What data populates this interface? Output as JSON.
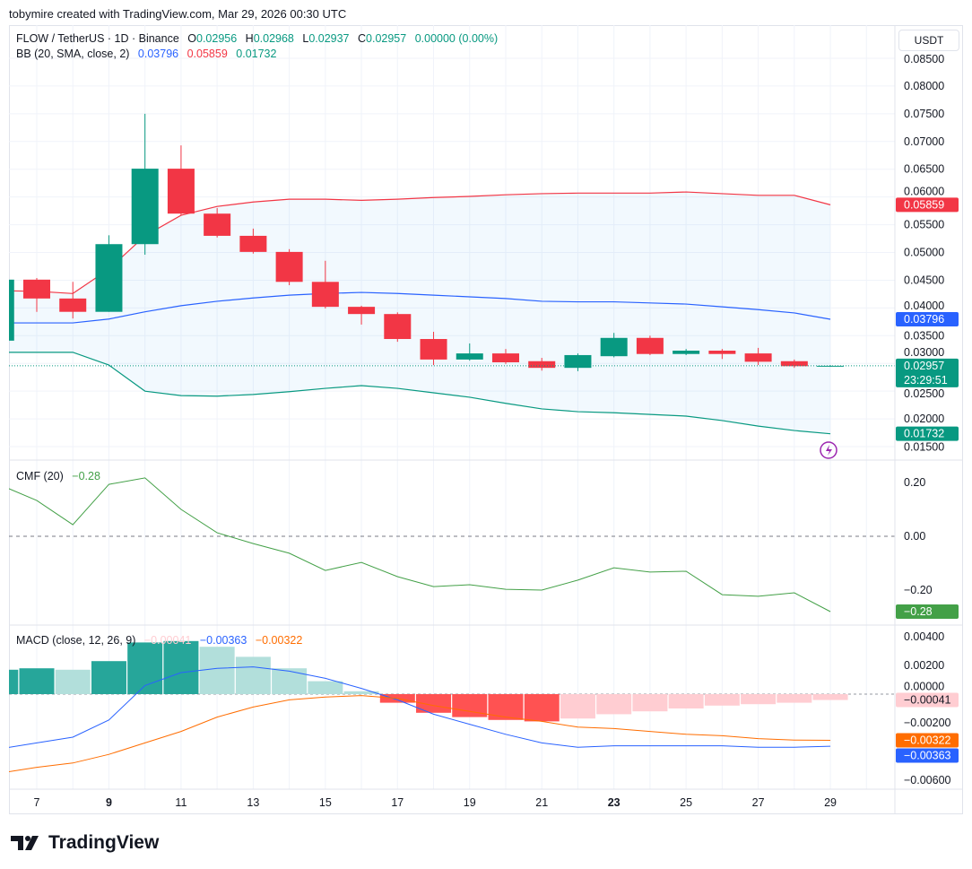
{
  "header": {
    "credit": "tobymire created with TradingView.com, Mar 29, 2026 00:30 UTC"
  },
  "legend": {
    "symbol": "FLOW / TetherUS · 1D · Binance",
    "o_label": "O",
    "o": "0.02956",
    "h_label": "H",
    "h": "0.02968",
    "l_label": "L",
    "l": "0.02937",
    "c_label": "C",
    "c": "0.02957",
    "change": "0.00000 (0.00%)",
    "bb_label": "BB (20, SMA, close, 2)",
    "bb_mid": "0.03796",
    "bb_up": "0.05859",
    "bb_low": "0.01732",
    "cmf_label": "CMF (20)",
    "cmf_val": "−0.28",
    "macd_label": "MACD (close, 12, 26, 9)",
    "macd_hist": "−0.00041",
    "macd_line": "−0.00363",
    "macd_signal": "−0.00322"
  },
  "currency_button": "USDT",
  "logo_text": "TradingView",
  "colors": {
    "up": "#089981",
    "down": "#f23645",
    "bb_mid": "#2962ff",
    "bb_up": "#f23645",
    "bb_low": "#089981",
    "cmf": "#43a047",
    "macd": "#2962ff",
    "signal": "#ff6d00",
    "hist_up_grow": "#26a69a",
    "hist_up_fall": "#b2dfdb",
    "hist_dn_grow": "#ff5252",
    "hist_dn_fall": "#ffcdd2"
  },
  "chart_data": [
    {
      "type": "candlestick",
      "title": "FLOW / TetherUS · 1D · Binance",
      "x_unit": "day of March 2026",
      "x_ticks": [
        "7",
        "9",
        "11",
        "13",
        "15",
        "17",
        "19",
        "21",
        "23",
        "25",
        "27",
        "29"
      ],
      "y_ticks": [
        "0.08500",
        "0.08000",
        "0.07500",
        "0.07000",
        "0.06500",
        "0.06000",
        "0.05500",
        "0.05000",
        "0.04500",
        "0.04000",
        "0.03500",
        "0.03000",
        "0.02500",
        "0.02000",
        "0.01500"
      ],
      "ylim": [
        0.015,
        0.085
      ],
      "days": [
        6,
        7,
        8,
        9,
        10,
        11,
        12,
        13,
        14,
        15,
        16,
        17,
        18,
        19,
        20,
        21,
        22,
        23,
        24,
        25,
        26,
        27,
        28,
        29
      ],
      "open": [
        0.0341,
        0.0451,
        0.0417,
        0.0393,
        0.0515,
        0.0651,
        0.057,
        0.053,
        0.0501,
        0.0447,
        0.0402,
        0.0389,
        0.0344,
        0.0307,
        0.0318,
        0.0304,
        0.0292,
        0.0313,
        0.0346,
        0.0317,
        0.0323,
        0.0318,
        0.0304,
        0.02956
      ],
      "high": [
        0.0455,
        0.0454,
        0.0447,
        0.0531,
        0.075,
        0.0693,
        0.058,
        0.0543,
        0.0506,
        0.0485,
        0.0404,
        0.0392,
        0.0357,
        0.0336,
        0.0326,
        0.031,
        0.0318,
        0.0355,
        0.035,
        0.0326,
        0.0326,
        0.0328,
        0.0307,
        0.02968
      ],
      "low": [
        0.0341,
        0.0393,
        0.0381,
        0.0393,
        0.0496,
        0.0567,
        0.0527,
        0.0498,
        0.0441,
        0.0399,
        0.037,
        0.0339,
        0.0297,
        0.0305,
        0.0299,
        0.0287,
        0.0286,
        0.0311,
        0.0315,
        0.0315,
        0.0308,
        0.0297,
        0.0292,
        0.02937
      ],
      "close": [
        0.0451,
        0.0417,
        0.0393,
        0.0515,
        0.0651,
        0.057,
        0.053,
        0.0501,
        0.0447,
        0.0402,
        0.0389,
        0.0344,
        0.0307,
        0.0318,
        0.0302,
        0.0292,
        0.0315,
        0.0346,
        0.0317,
        0.0323,
        0.0317,
        0.0303,
        0.0295,
        0.02957
      ],
      "bb_upper": [
        0.0431,
        0.043,
        0.0426,
        0.047,
        0.053,
        0.0567,
        0.0583,
        0.0591,
        0.0596,
        0.0596,
        0.0594,
        0.0596,
        0.0599,
        0.0601,
        0.0604,
        0.0606,
        0.0607,
        0.0607,
        0.0607,
        0.0609,
        0.0606,
        0.0603,
        0.0603,
        0.05859
      ],
      "bb_middle": [
        0.0373,
        0.0373,
        0.0373,
        0.038,
        0.0393,
        0.0404,
        0.0412,
        0.0418,
        0.0423,
        0.0426,
        0.0428,
        0.0426,
        0.0423,
        0.042,
        0.0417,
        0.0412,
        0.0411,
        0.0411,
        0.0409,
        0.0407,
        0.0402,
        0.0397,
        0.0391,
        0.03796
      ],
      "bb_lower": [
        0.032,
        0.032,
        0.032,
        0.0297,
        0.025,
        0.0242,
        0.0241,
        0.0244,
        0.0249,
        0.0255,
        0.026,
        0.0255,
        0.0247,
        0.0239,
        0.0228,
        0.0218,
        0.0213,
        0.0211,
        0.0208,
        0.0205,
        0.0197,
        0.0187,
        0.0179,
        0.01732
      ],
      "labels": {
        "bb_up": "0.05859",
        "close": "0.02957",
        "countdown": "23:29:51",
        "bb_mid": "0.03796",
        "bb_low": "0.01732"
      }
    },
    {
      "type": "line",
      "title": "CMF (20)",
      "ylim": [
        -0.3,
        0.27
      ],
      "y_ticks": [
        "0.20",
        "0.00",
        "−0.20"
      ],
      "days": [
        6,
        7,
        8,
        9,
        10,
        11,
        12,
        13,
        14,
        15,
        16,
        17,
        18,
        19,
        20,
        21,
        22,
        23,
        24,
        25,
        26,
        27,
        28,
        29
      ],
      "values": [
        0.19,
        0.133,
        0.043,
        0.193,
        0.217,
        0.1,
        0.013,
        -0.027,
        -0.063,
        -0.127,
        -0.097,
        -0.15,
        -0.187,
        -0.18,
        -0.197,
        -0.2,
        -0.163,
        -0.117,
        -0.133,
        -0.13,
        -0.217,
        -0.223,
        -0.21,
        -0.28
      ],
      "last_label": "−0.28"
    },
    {
      "type": "bar+line",
      "title": "MACD (close, 12, 26, 9)",
      "ylim": [
        -0.0068,
        0.0046
      ],
      "y_ticks": [
        "0.00400",
        "0.00200",
        "0.00000",
        "−0.00200",
        "−0.00600"
      ],
      "days": [
        6,
        7,
        8,
        9,
        10,
        11,
        12,
        13,
        14,
        15,
        16,
        17,
        18,
        19,
        20,
        21,
        22,
        23,
        24,
        25,
        26,
        27,
        28,
        29
      ],
      "histogram": [
        0.0017,
        0.0018,
        0.0017,
        0.0023,
        0.0036,
        0.0037,
        0.0033,
        0.0026,
        0.0018,
        0.0009,
        0.0002,
        -0.0006,
        -0.0013,
        -0.0016,
        -0.0018,
        -0.0019,
        -0.0017,
        -0.0014,
        -0.0012,
        -0.001,
        -0.0008,
        -0.0007,
        -0.0006,
        -0.00041
      ],
      "macd": [
        -0.0038,
        -0.0034,
        -0.003,
        -0.0018,
        0.0006,
        0.0015,
        0.0018,
        0.0019,
        0.0016,
        0.0011,
        0.0004,
        -0.0004,
        -0.0014,
        -0.0021,
        -0.0028,
        -0.0034,
        -0.0037,
        -0.0036,
        -0.0036,
        -0.0036,
        -0.0036,
        -0.0037,
        -0.0037,
        -0.00363
      ],
      "signal": [
        -0.0055,
        -0.0051,
        -0.0048,
        -0.0042,
        -0.0034,
        -0.0026,
        -0.0016,
        -0.0009,
        -0.0004,
        -0.0002,
        -0.0001,
        -0.0003,
        -0.0008,
        -0.0012,
        -0.0016,
        -0.0019,
        -0.0023,
        -0.0024,
        -0.0026,
        -0.0028,
        -0.0029,
        -0.0031,
        -0.0032,
        -0.00322
      ],
      "labels": {
        "hist": "−0.00041",
        "signal": "−0.00322",
        "macd": "−0.00363"
      }
    }
  ]
}
